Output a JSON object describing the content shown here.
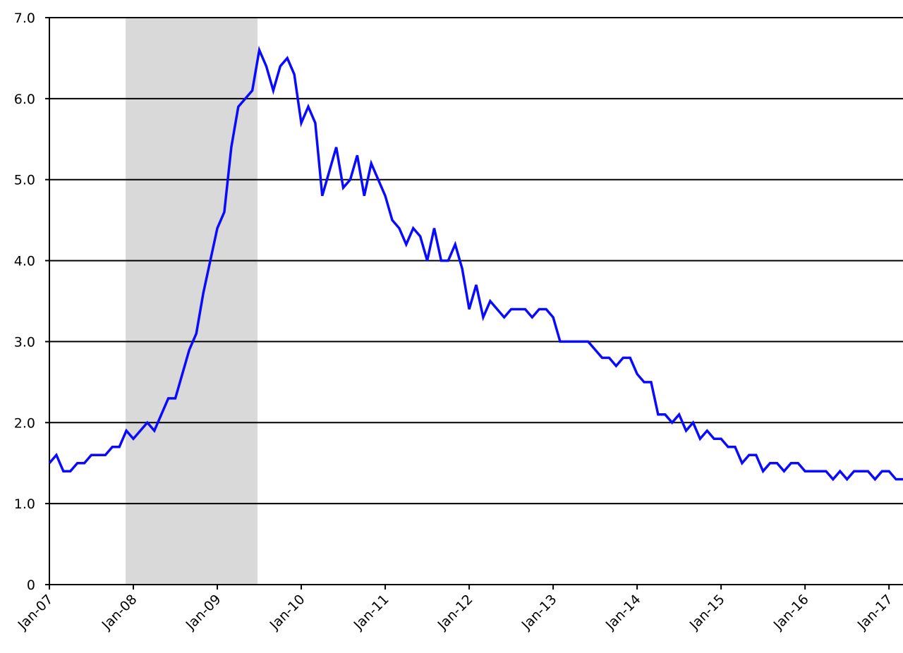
{
  "chart_data": {
    "type": "line",
    "categories": [
      "Jan-07",
      null,
      null,
      null,
      null,
      null,
      null,
      null,
      null,
      null,
      null,
      null,
      "Jan-08",
      null,
      null,
      null,
      null,
      null,
      null,
      null,
      null,
      null,
      null,
      null,
      "Jan-09",
      null,
      null,
      null,
      null,
      null,
      null,
      null,
      null,
      null,
      null,
      null,
      "Jan-10",
      null,
      null,
      null,
      null,
      null,
      null,
      null,
      null,
      null,
      null,
      null,
      "Jan-11",
      null,
      null,
      null,
      null,
      null,
      null,
      null,
      null,
      null,
      null,
      null,
      "Jan-12",
      null,
      null,
      null,
      null,
      null,
      null,
      null,
      null,
      null,
      null,
      null,
      "Jan-13",
      null,
      null,
      null,
      null,
      null,
      null,
      null,
      null,
      null,
      null,
      null,
      "Jan-14",
      null,
      null,
      null,
      null,
      null,
      null,
      null,
      null,
      null,
      null,
      null,
      "Jan-15",
      null,
      null,
      null,
      null,
      null,
      null,
      null,
      null,
      null,
      null,
      null,
      "Jan-16",
      null,
      null,
      null,
      null,
      null,
      null,
      null,
      null,
      null,
      null,
      null,
      "Jan-17",
      null,
      null
    ],
    "values": [
      1.5,
      1.6,
      1.4,
      1.4,
      1.5,
      1.5,
      1.6,
      1.6,
      1.6,
      1.7,
      1.7,
      1.9,
      1.8,
      1.9,
      2.0,
      1.9,
      2.1,
      2.3,
      2.3,
      2.6,
      2.9,
      3.1,
      3.6,
      4.0,
      4.4,
      4.6,
      5.4,
      5.9,
      6.0,
      6.1,
      6.6,
      6.4,
      6.1,
      6.4,
      6.5,
      6.3,
      5.7,
      5.9,
      5.7,
      4.8,
      5.1,
      5.4,
      4.9,
      5.0,
      5.3,
      4.8,
      5.2,
      5.0,
      4.8,
      4.5,
      4.4,
      4.2,
      4.4,
      4.3,
      4.0,
      4.4,
      4.0,
      4.0,
      4.2,
      3.9,
      3.4,
      3.7,
      3.3,
      3.5,
      3.4,
      3.3,
      3.4,
      3.4,
      3.4,
      3.3,
      3.4,
      3.4,
      3.3,
      3.0,
      3.0,
      3.0,
      3.0,
      3.0,
      2.9,
      2.8,
      2.8,
      2.7,
      2.8,
      2.8,
      2.6,
      2.5,
      2.5,
      2.1,
      2.1,
      2.0,
      2.1,
      1.9,
      2.0,
      1.8,
      1.9,
      1.8,
      1.8,
      1.7,
      1.7,
      1.5,
      1.6,
      1.6,
      1.4,
      1.5,
      1.5,
      1.4,
      1.5,
      1.5,
      1.4,
      1.4,
      1.4,
      1.4,
      1.3,
      1.4,
      1.3,
      1.4,
      1.4,
      1.4,
      1.3,
      1.4,
      1.4,
      1.3,
      1.3
    ],
    "color": "#0a0aff",
    "shaded_regions": [
      {
        "start": 10.9,
        "end": 29.75,
        "color": "#d9d9d9"
      }
    ],
    "ylim": [
      0,
      7
    ],
    "yticks": [
      0,
      {
        "value": 1,
        "label": "1.0"
      },
      {
        "value": 2,
        "label": "2.0"
      },
      {
        "value": 3,
        "label": "3.0"
      },
      {
        "value": 4,
        "label": "4.0"
      },
      {
        "value": 5,
        "label": "5.0"
      },
      {
        "value": 6,
        "label": "6.0"
      },
      {
        "value": 7,
        "label": "7.0"
      }
    ],
    "grid": true
  }
}
